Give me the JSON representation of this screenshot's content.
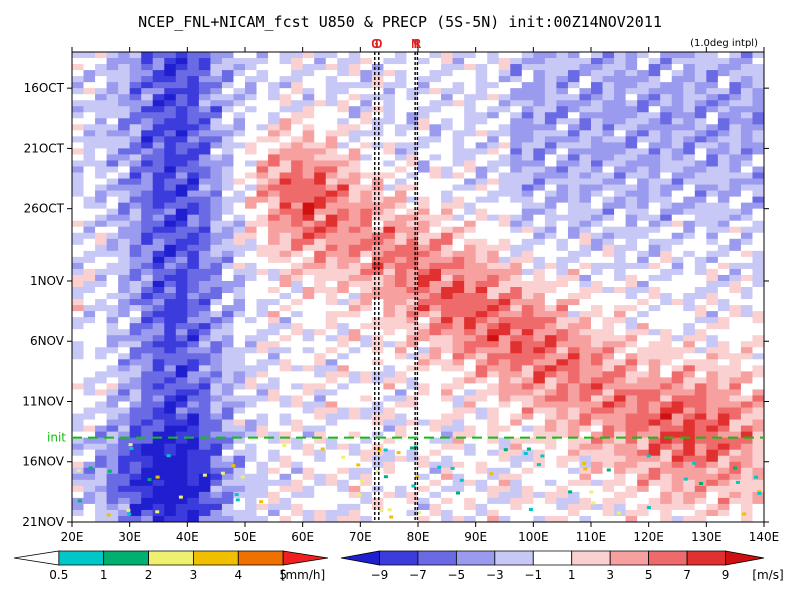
{
  "chart_data": {
    "type": "heatmap",
    "title": "NCEP_FNL+NICAM_fcst U850 & PRECP (5S-5N) init:00Z14NOV2011",
    "note": "(1.0deg intpl)",
    "xlabel": "",
    "ylabel": "",
    "x_ticks": [
      "20E",
      "30E",
      "40E",
      "50E",
      "60E",
      "70E",
      "80E",
      "90E",
      "100E",
      "110E",
      "120E",
      "130E",
      "140E"
    ],
    "x_range": [
      20,
      140
    ],
    "y_ticks": [
      "16OCT",
      "21OCT",
      "26OCT",
      "1NOV",
      "6NOV",
      "11NOV",
      "16NOV",
      "21NOV"
    ],
    "y_range": [
      "2011-10-13",
      "2011-11-21"
    ],
    "markers": [
      {
        "label": "G",
        "lon": 72.5
      },
      {
        "label": "D",
        "lon": 73.2
      },
      {
        "label": "M",
        "lon": 79.5
      },
      {
        "label": "R",
        "lon": 79.9
      }
    ],
    "init_line": {
      "label": "init",
      "date": "2011-11-14"
    },
    "u850_colorbar": {
      "unit": "[m/s]",
      "levels": [
        -9,
        -7,
        -5,
        -3,
        -1,
        1,
        3,
        5,
        7,
        9
      ],
      "colors": [
        "#1f1fd0",
        "#3c3cdc",
        "#6a6ae4",
        "#9a9aee",
        "#c8c8f6",
        "#ffffff",
        "#fbd0d0",
        "#f6a0a0",
        "#ef6a6a",
        "#e03030",
        "#d01010"
      ]
    },
    "precip_colorbar": {
      "unit": "[mm/h]",
      "levels": [
        0.5,
        1,
        2,
        3,
        4,
        5
      ],
      "colors": [
        "#ffffff",
        "#00c8c8",
        "#00b070",
        "#f0f070",
        "#f0c000",
        "#f07000",
        "#f02020"
      ]
    },
    "u850_anomaly_features": [
      {
        "name": "westerly burst 1",
        "lon_start": 55,
        "lon_end": 66,
        "date": "2011-10-24",
        "u": 5
      },
      {
        "name": "westerly burst 2",
        "lon_start": 72,
        "lon_end": 82,
        "date": "2011-11-01",
        "u": 7
      },
      {
        "name": "westerly burst 3",
        "lon_start": 90,
        "lon_end": 98,
        "date": "2011-11-04",
        "u": 7
      },
      {
        "name": "westerly burst 4",
        "lon_start": 104,
        "lon_end": 112,
        "date": "2011-11-06",
        "u": 7
      },
      {
        "name": "easterly band",
        "lon_start": 22,
        "lon_end": 48,
        "date": "2011-11-15",
        "u": -7
      }
    ]
  }
}
